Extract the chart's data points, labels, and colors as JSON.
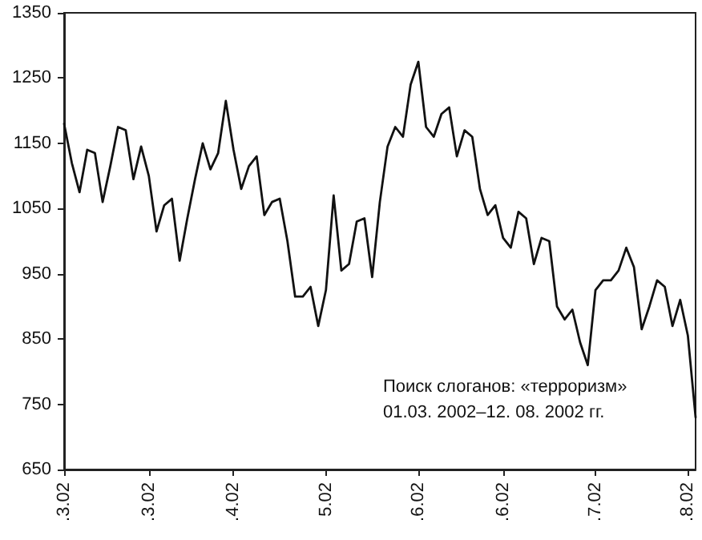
{
  "chart_data": {
    "type": "line",
    "annotations": [
      "Поиск слоганов: «терроризм»",
      "01.03. 2002–12. 08. 2002 гг."
    ],
    "categories": [
      ".3.02",
      null,
      null,
      null,
      null,
      null,
      null,
      null,
      null,
      null,
      null,
      ".3.02",
      null,
      null,
      null,
      null,
      null,
      null,
      null,
      null,
      null,
      null,
      ".4.02",
      null,
      null,
      null,
      null,
      null,
      null,
      null,
      null,
      null,
      null,
      null,
      "5.02",
      null,
      null,
      null,
      null,
      null,
      null,
      null,
      null,
      null,
      null,
      null,
      ".6.02",
      null,
      null,
      null,
      null,
      null,
      null,
      null,
      null,
      null,
      null,
      ".6.02",
      null,
      null,
      null,
      null,
      null,
      null,
      null,
      null,
      null,
      null,
      null,
      ".7.02",
      null,
      null,
      null,
      null,
      null,
      null,
      null,
      null,
      null,
      null,
      null,
      ".8.02",
      null
    ],
    "series": [
      {
        "color": "#111111",
        "values": [
          1180,
          1120,
          1075,
          1140,
          1135,
          1060,
          1115,
          1175,
          1170,
          1095,
          1145,
          1100,
          1015,
          1055,
          1065,
          970,
          1035,
          1095,
          1150,
          1110,
          1135,
          1215,
          1140,
          1080,
          1115,
          1130,
          1040,
          1060,
          1065,
          1000,
          915,
          915,
          930,
          870,
          925,
          1070,
          955,
          965,
          1030,
          1035,
          945,
          1060,
          1145,
          1175,
          1160,
          1240,
          1275,
          1175,
          1160,
          1195,
          1205,
          1130,
          1170,
          1160,
          1080,
          1040,
          1055,
          1005,
          990,
          1045,
          1035,
          965,
          1005,
          1000,
          900,
          880,
          895,
          845,
          810,
          925,
          940,
          940,
          955,
          990,
          960,
          865,
          900,
          940,
          930,
          870,
          910,
          855,
          730
        ]
      }
    ],
    "ylim": [
      650,
      1350
    ],
    "yticks": [
      650,
      750,
      850,
      950,
      1050,
      1150,
      1250,
      1350
    ],
    "grid": false,
    "marker": "none",
    "line_style": "solid"
  }
}
